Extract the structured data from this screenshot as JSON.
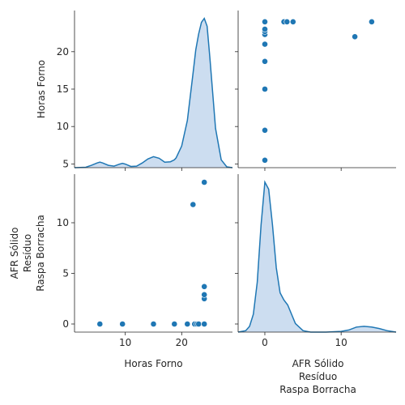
{
  "chart_data": {
    "type": "scatter",
    "subtype": "pairplot",
    "variables": [
      "Horas Forno",
      "AFR Sólido\nResíduo\nRaspa Borracha"
    ],
    "axis_labels": {
      "x": [
        "Horas Forno",
        "AFR Sólido",
        "Resíduo",
        "Raspa Borracha"
      ],
      "y": [
        "Horas Forno",
        "AFR Sólido",
        "Resíduo",
        "Raspa Borracha"
      ]
    },
    "observations": [
      {
        "horas_forno": 5.5,
        "afr_solido": 0
      },
      {
        "horas_forno": 9.5,
        "afr_solido": 0
      },
      {
        "horas_forno": 15,
        "afr_solido": 0
      },
      {
        "horas_forno": 18.7,
        "afr_solido": 0
      },
      {
        "horas_forno": 21,
        "afr_solido": 0
      },
      {
        "horas_forno": 22.3,
        "afr_solido": 0
      },
      {
        "horas_forno": 22.7,
        "afr_solido": 0
      },
      {
        "horas_forno": 23,
        "afr_solido": 0
      },
      {
        "horas_forno": 24,
        "afr_solido": 0
      },
      {
        "horas_forno": 24,
        "afr_solido": 0
      },
      {
        "horas_forno": 24,
        "afr_solido": 0
      },
      {
        "horas_forno": 24,
        "afr_solido": 2.5
      },
      {
        "horas_forno": 24,
        "afr_solido": 2.9
      },
      {
        "horas_forno": 24,
        "afr_solido": 3.7
      },
      {
        "horas_forno": 22,
        "afr_solido": 11.8
      },
      {
        "horas_forno": 24,
        "afr_solido": 14
      }
    ],
    "axes": {
      "horas_forno": {
        "xlim": [
          1,
          29
        ],
        "ylim": [
          4.5,
          25.5
        ],
        "ticks": [
          10,
          20
        ],
        "yticks": [
          5,
          10,
          15,
          20
        ]
      },
      "afr_solido": {
        "xlim": [
          -3.5,
          17.2
        ],
        "ylim": [
          -0.8,
          14.8
        ],
        "ticks": [
          0,
          10
        ],
        "yticks": [
          0,
          5,
          10
        ]
      }
    },
    "kde": {
      "horas_forno": {
        "x": [
          1,
          3,
          4,
          5,
          5.5,
          6,
          7,
          8,
          9,
          9.5,
          10,
          11,
          12,
          13,
          14,
          15,
          16,
          17,
          18,
          18.7,
          19,
          20,
          21,
          22,
          22.5,
          23,
          23.5,
          24,
          24.5,
          25,
          25.5,
          26,
          27,
          28,
          29
        ],
        "density": [
          0,
          0.001,
          0.006,
          0.012,
          0.014,
          0.012,
          0.006,
          0.004,
          0.009,
          0.011,
          0.009,
          0.003,
          0.004,
          0.012,
          0.022,
          0.028,
          0.024,
          0.014,
          0.015,
          0.02,
          0.025,
          0.055,
          0.12,
          0.24,
          0.3,
          0.34,
          0.37,
          0.38,
          0.36,
          0.28,
          0.19,
          0.1,
          0.02,
          0.002,
          0
        ]
      },
      "afr_solido": {
        "x": [
          -3.5,
          -2.5,
          -2,
          -1.5,
          -1,
          -0.5,
          0,
          0.5,
          1,
          1.5,
          2,
          2.5,
          3,
          3.5,
          4,
          5,
          6,
          8,
          10,
          11,
          12,
          13,
          14,
          15,
          16,
          17.2
        ],
        "density": [
          0,
          0.002,
          0.008,
          0.025,
          0.07,
          0.15,
          0.21,
          0.2,
          0.15,
          0.09,
          0.055,
          0.045,
          0.038,
          0.025,
          0.012,
          0.002,
          0,
          0,
          0.001,
          0.003,
          0.007,
          0.008,
          0.007,
          0.005,
          0.002,
          0
        ]
      }
    },
    "colors": {
      "marker": "#1f77b4",
      "kde_line": "#1f77b4",
      "kde_fill": "#c6d9ee"
    },
    "grid": false,
    "legend": "none"
  }
}
